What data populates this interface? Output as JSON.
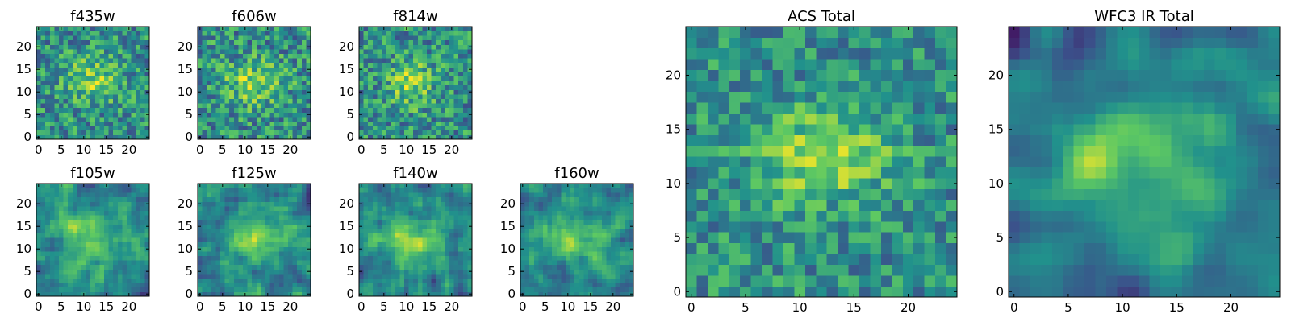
{
  "figure": {
    "background": "#ffffff"
  },
  "colormap": {
    "name": "viridis",
    "stops": [
      "#440154",
      "#3b528b",
      "#21918c",
      "#5ec962",
      "#fde725"
    ]
  },
  "chart_data": [
    {
      "type": "heatmap",
      "id": "f435w",
      "title": "f435w",
      "grid": false,
      "xlim": [
        -0.5,
        24.5
      ],
      "ylim": [
        -0.5,
        24.5
      ],
      "xticks": [
        0,
        5,
        10,
        15,
        20
      ],
      "yticks": [
        0,
        5,
        10,
        15,
        20
      ],
      "shape": [
        25,
        25
      ],
      "value_range": [
        0,
        1
      ],
      "values": [],
      "noise_model": {
        "seed": 11,
        "blob": {
          "cx": 12,
          "cy": 13,
          "sx": 4.5,
          "sy": 3.5,
          "amp": 0.3
        },
        "base": 0.5,
        "noise": 0.26,
        "smooth": 0
      }
    },
    {
      "type": "heatmap",
      "id": "f606w",
      "title": "f606w",
      "grid": false,
      "xlim": [
        -0.5,
        24.5
      ],
      "ylim": [
        -0.5,
        24.5
      ],
      "xticks": [
        0,
        5,
        10,
        15,
        20
      ],
      "yticks": [
        0,
        5,
        10,
        15,
        20
      ],
      "shape": [
        25,
        25
      ],
      "value_range": [
        0,
        1
      ],
      "values": [],
      "noise_model": {
        "seed": 23,
        "blob": {
          "cx": 12,
          "cy": 12,
          "sx": 4.5,
          "sy": 3.5,
          "amp": 0.3
        },
        "base": 0.5,
        "noise": 0.27,
        "smooth": 0
      }
    },
    {
      "type": "heatmap",
      "id": "f814w",
      "title": "f814w",
      "grid": false,
      "xlim": [
        -0.5,
        24.5
      ],
      "ylim": [
        -0.5,
        24.5
      ],
      "xticks": [
        0,
        5,
        10,
        15,
        20
      ],
      "yticks": [
        0,
        5,
        10,
        15,
        20
      ],
      "shape": [
        25,
        25
      ],
      "value_range": [
        0,
        1
      ],
      "values": [],
      "noise_model": {
        "seed": 37,
        "blob": {
          "cx": 11,
          "cy": 12,
          "sx": 3.5,
          "sy": 3.5,
          "amp": 0.32
        },
        "base": 0.5,
        "noise": 0.26,
        "smooth": 0
      }
    },
    {
      "type": "heatmap",
      "id": "f105w",
      "title": "f105w",
      "grid": false,
      "xlim": [
        -0.5,
        24.5
      ],
      "ylim": [
        -0.5,
        24.5
      ],
      "xticks": [
        0,
        5,
        10,
        15,
        20
      ],
      "yticks": [
        0,
        5,
        10,
        15,
        20
      ],
      "shape": [
        25,
        25
      ],
      "value_range": [
        0,
        1
      ],
      "values": [],
      "noise_model": {
        "seed": 41,
        "blob": {
          "cx": 12,
          "cy": 12,
          "sx": 5,
          "sy": 5,
          "amp": 0.3
        },
        "base": 0.45,
        "noise": 0.24,
        "smooth": 1
      }
    },
    {
      "type": "heatmap",
      "id": "f125w",
      "title": "f125w",
      "grid": false,
      "xlim": [
        -0.5,
        24.5
      ],
      "ylim": [
        -0.5,
        24.5
      ],
      "xticks": [
        0,
        5,
        10,
        15,
        20
      ],
      "yticks": [
        0,
        5,
        10,
        15,
        20
      ],
      "shape": [
        25,
        25
      ],
      "value_range": [
        0,
        1
      ],
      "values": [],
      "noise_model": {
        "seed": 53,
        "blob": {
          "cx": 13,
          "cy": 12,
          "sx": 5,
          "sy": 4,
          "amp": 0.32
        },
        "base": 0.45,
        "noise": 0.24,
        "smooth": 1
      }
    },
    {
      "type": "heatmap",
      "id": "f140w",
      "title": "f140w",
      "grid": false,
      "xlim": [
        -0.5,
        24.5
      ],
      "ylim": [
        -0.5,
        24.5
      ],
      "xticks": [
        0,
        5,
        10,
        15,
        20
      ],
      "yticks": [
        0,
        5,
        10,
        15,
        20
      ],
      "shape": [
        25,
        25
      ],
      "value_range": [
        0,
        1
      ],
      "values": [],
      "noise_model": {
        "seed": 67,
        "blob": {
          "cx": 11,
          "cy": 12,
          "sx": 5,
          "sy": 4,
          "amp": 0.3
        },
        "base": 0.45,
        "noise": 0.24,
        "smooth": 1
      }
    },
    {
      "type": "heatmap",
      "id": "f160w",
      "title": "f160w",
      "grid": false,
      "xlim": [
        -0.5,
        24.5
      ],
      "ylim": [
        -0.5,
        24.5
      ],
      "xticks": [
        0,
        5,
        10,
        15,
        20
      ],
      "yticks": [
        0,
        5,
        10,
        15,
        20
      ],
      "shape": [
        25,
        25
      ],
      "value_range": [
        0,
        1
      ],
      "values": [],
      "noise_model": {
        "seed": 79,
        "blob": {
          "cx": 11,
          "cy": 12,
          "sx": 5,
          "sy": 3.5,
          "amp": 0.34
        },
        "base": 0.45,
        "noise": 0.22,
        "smooth": 1
      }
    },
    {
      "type": "heatmap",
      "id": "acs-total",
      "title": "ACS Total",
      "grid": false,
      "xlim": [
        -0.5,
        24.5
      ],
      "ylim": [
        -0.5,
        24.5
      ],
      "xticks": [
        0,
        5,
        10,
        15,
        20
      ],
      "yticks": [
        0,
        5,
        10,
        15,
        20
      ],
      "shape": [
        25,
        25
      ],
      "value_range": [
        0,
        1
      ],
      "values": [],
      "noise_model": {
        "seed": 91,
        "blob": {
          "cx": 12,
          "cy": 12.5,
          "sx": 4.5,
          "sy": 3,
          "amp": 0.33
        },
        "base": 0.5,
        "noise": 0.22,
        "smooth": 0
      }
    },
    {
      "type": "heatmap",
      "id": "wfc3-ir-total",
      "title": "WFC3 IR Total",
      "grid": false,
      "xlim": [
        -0.5,
        24.5
      ],
      "ylim": [
        -0.5,
        24.5
      ],
      "xticks": [
        0,
        5,
        10,
        15,
        20
      ],
      "yticks": [
        0,
        5,
        10,
        15,
        20
      ],
      "shape": [
        25,
        25
      ],
      "value_range": [
        0,
        1
      ],
      "values": [],
      "noise_model": {
        "seed": 103,
        "blob": {
          "cx": 12,
          "cy": 12,
          "sx": 5,
          "sy": 3.5,
          "amp": 0.38
        },
        "base": 0.42,
        "noise": 0.16,
        "smooth": 2
      }
    }
  ]
}
